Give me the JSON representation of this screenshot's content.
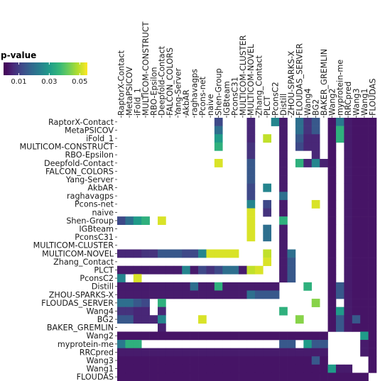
{
  "chart_data": {
    "type": "heatmap",
    "title": "",
    "legend": {
      "title": "p-value",
      "placement": "top-left",
      "range": [
        0.0,
        0.055
      ],
      "ticks": [
        0.01,
        0.03,
        0.05
      ],
      "tick_labels": [
        "0.01",
        "0.03",
        "0.05"
      ],
      "colormap": "viridis"
    },
    "x_labels": [
      "RaptorX-Contact",
      "MetaPSICOV",
      "iFold_1",
      "MULTICOM-CONSTRUCT",
      "RBO-Epsilon",
      "Deepfold-Contact",
      "FALCON_COLORS",
      "Yang-Server",
      "AkbAR",
      "raghavagps",
      "Pcons-net",
      "naive",
      "Shen-Group",
      "IGBteam",
      "PconsC31",
      "MULTICOM-CLUSTER",
      "MULTICOM-NOVEL",
      "Zhang_Contact",
      "PLCT",
      "PconsC2",
      "Distill",
      "ZHOU-SPARKS-X",
      "FLOUDAS_SERVER",
      "Wang4",
      "BG2",
      "BAKER_GREMLIN",
      "Wang2",
      "myprotein-me",
      "RRCpred",
      "Wang3",
      "Wang1",
      "FLOUDAS"
    ],
    "y_labels": [
      "RaptorX-Contact",
      "MetaPSICOV",
      "iFold_1",
      "MULTICOM-CONSTRUCT",
      "RBO-Epsilon",
      "Deepfold-Contact",
      "FALCON_COLORS",
      "Yang-Server",
      "AkbAR",
      "raghavagps",
      "Pcons-net",
      "naive",
      "Shen-Group",
      "IGBteam",
      "PconsC31",
      "MULTICOM-CLUSTER",
      "MULTICOM-NOVEL",
      "Zhang_Contact",
      "PLCT",
      "PconsC2",
      "Distill",
      "ZHOU-SPARKS-X",
      "FLOUDAS_SERVER",
      "Wang4",
      "BG2",
      "BAKER_GREMLIN",
      "Wang2",
      "myprotein-me",
      "RRCpred",
      "Wang3",
      "Wang1",
      "FLOUDAS"
    ],
    "missing": "blank (not significant / no value)",
    "values": [
      [
        null,
        null,
        null,
        null,
        null,
        null,
        null,
        null,
        null,
        null,
        null,
        null,
        0.012,
        null,
        null,
        null,
        0.006,
        null,
        null,
        0.025,
        0.004,
        null,
        0.02,
        0.008,
        0.015,
        null,
        0.003,
        0.022,
        0.004,
        0.003,
        0.003,
        0.003
      ],
      [
        null,
        null,
        null,
        null,
        null,
        null,
        null,
        null,
        null,
        null,
        null,
        null,
        0.02,
        null,
        null,
        null,
        0.006,
        null,
        null,
        null,
        0.004,
        null,
        0.02,
        0.008,
        0.015,
        null,
        0.003,
        0.035,
        0.004,
        0.003,
        0.003,
        0.003
      ],
      [
        null,
        null,
        null,
        null,
        null,
        null,
        null,
        null,
        null,
        null,
        null,
        null,
        0.03,
        null,
        null,
        null,
        0.006,
        null,
        0.05,
        null,
        0.004,
        null,
        0.015,
        0.006,
        0.006,
        null,
        0.003,
        0.035,
        0.004,
        0.003,
        0.003,
        0.003
      ],
      [
        null,
        null,
        null,
        null,
        null,
        null,
        null,
        null,
        null,
        null,
        null,
        null,
        0.035,
        null,
        null,
        null,
        0.008,
        null,
        null,
        null,
        0.004,
        null,
        0.012,
        0.006,
        0.006,
        null,
        0.003,
        null,
        0.004,
        0.003,
        0.003,
        0.003
      ],
      [
        null,
        null,
        null,
        null,
        null,
        null,
        null,
        null,
        null,
        null,
        null,
        null,
        null,
        null,
        null,
        null,
        0.008,
        null,
        null,
        null,
        0.004,
        null,
        null,
        null,
        0.006,
        null,
        0.003,
        null,
        0.004,
        0.003,
        0.003,
        0.003
      ],
      [
        null,
        null,
        null,
        null,
        null,
        null,
        null,
        null,
        null,
        null,
        null,
        null,
        0.052,
        null,
        null,
        null,
        0.015,
        null,
        null,
        null,
        0.004,
        null,
        0.035,
        0.006,
        0.025,
        0.005,
        0.003,
        null,
        0.004,
        0.003,
        0.003,
        0.003
      ],
      [
        null,
        null,
        null,
        null,
        null,
        null,
        null,
        null,
        null,
        null,
        null,
        null,
        null,
        null,
        null,
        null,
        0.015,
        null,
        null,
        null,
        0.004,
        null,
        null,
        null,
        null,
        null,
        0.003,
        null,
        0.004,
        0.003,
        0.003,
        0.003
      ],
      [
        null,
        null,
        null,
        null,
        null,
        null,
        null,
        null,
        null,
        null,
        null,
        null,
        null,
        null,
        null,
        null,
        0.015,
        null,
        null,
        null,
        0.004,
        null,
        null,
        null,
        null,
        null,
        0.003,
        null,
        0.004,
        0.003,
        0.003,
        0.003
      ],
      [
        null,
        null,
        null,
        null,
        null,
        null,
        null,
        null,
        null,
        null,
        null,
        null,
        null,
        null,
        null,
        null,
        0.012,
        null,
        0.025,
        null,
        0.004,
        null,
        null,
        null,
        null,
        null,
        0.003,
        null,
        0.004,
        0.003,
        0.003,
        0.003
      ],
      [
        null,
        null,
        null,
        null,
        null,
        null,
        null,
        null,
        null,
        null,
        null,
        null,
        null,
        null,
        null,
        null,
        0.012,
        null,
        null,
        null,
        0.02,
        null,
        null,
        null,
        null,
        null,
        0.003,
        null,
        0.004,
        0.003,
        0.003,
        0.003
      ],
      [
        null,
        null,
        null,
        null,
        null,
        null,
        null,
        null,
        null,
        null,
        null,
        null,
        null,
        null,
        null,
        null,
        0.025,
        null,
        0.012,
        null,
        0.004,
        null,
        null,
        null,
        0.052,
        null,
        0.003,
        null,
        0.004,
        0.003,
        0.003,
        0.003
      ],
      [
        null,
        null,
        null,
        null,
        null,
        null,
        null,
        null,
        null,
        null,
        null,
        null,
        null,
        null,
        null,
        null,
        0.052,
        null,
        0.008,
        null,
        0.004,
        null,
        null,
        null,
        null,
        null,
        0.003,
        null,
        0.004,
        0.003,
        0.003,
        0.003
      ],
      [
        0.012,
        0.02,
        0.03,
        0.035,
        null,
        0.052,
        null,
        null,
        null,
        null,
        null,
        null,
        null,
        null,
        null,
        null,
        0.052,
        null,
        null,
        null,
        0.035,
        null,
        null,
        null,
        null,
        null,
        0.003,
        null,
        0.004,
        0.003,
        0.003,
        0.003
      ],
      [
        null,
        null,
        null,
        null,
        null,
        null,
        null,
        null,
        null,
        null,
        null,
        null,
        null,
        null,
        null,
        null,
        0.052,
        null,
        0.02,
        null,
        0.004,
        null,
        null,
        null,
        null,
        null,
        0.003,
        null,
        0.004,
        0.003,
        0.003,
        0.003
      ],
      [
        null,
        null,
        null,
        null,
        null,
        null,
        null,
        null,
        null,
        null,
        null,
        null,
        null,
        null,
        null,
        null,
        0.052,
        null,
        0.02,
        null,
        0.004,
        null,
        null,
        null,
        null,
        null,
        0.003,
        null,
        0.004,
        0.003,
        0.003,
        0.003
      ],
      [
        null,
        null,
        null,
        null,
        null,
        null,
        null,
        null,
        null,
        null,
        null,
        null,
        null,
        null,
        null,
        null,
        null,
        null,
        null,
        null,
        0.004,
        null,
        null,
        null,
        null,
        null,
        0.003,
        null,
        0.004,
        0.003,
        0.003,
        0.003
      ],
      [
        0.006,
        0.006,
        0.006,
        0.008,
        0.008,
        0.015,
        0.015,
        0.015,
        0.012,
        0.012,
        0.025,
        0.052,
        0.052,
        0.052,
        0.052,
        null,
        null,
        null,
        0.05,
        null,
        0.004,
        0.02,
        null,
        null,
        null,
        null,
        0.003,
        null,
        0.004,
        0.003,
        0.003,
        0.003
      ],
      [
        null,
        null,
        null,
        null,
        null,
        null,
        null,
        null,
        null,
        null,
        null,
        null,
        null,
        null,
        null,
        null,
        null,
        null,
        0.052,
        null,
        0.004,
        0.015,
        null,
        null,
        null,
        null,
        0.003,
        null,
        0.004,
        0.003,
        0.003,
        0.003
      ],
      [
        0.004,
        0.004,
        0.004,
        0.004,
        0.004,
        0.004,
        0.004,
        0.004,
        0.025,
        0.004,
        0.012,
        0.008,
        0.012,
        0.02,
        0.02,
        0.004,
        0.05,
        0.052,
        null,
        null,
        0.004,
        0.015,
        null,
        null,
        null,
        null,
        0.003,
        null,
        0.004,
        0.003,
        0.003,
        0.003
      ],
      [
        0.025,
        null,
        0.052,
        null,
        null,
        null,
        null,
        null,
        null,
        null,
        null,
        null,
        null,
        null,
        null,
        null,
        null,
        null,
        null,
        null,
        0.004,
        0.015,
        null,
        null,
        null,
        null,
        0.003,
        null,
        0.004,
        0.003,
        0.003,
        0.003
      ],
      [
        0.004,
        0.004,
        0.004,
        0.004,
        0.004,
        0.004,
        0.004,
        0.004,
        0.004,
        0.02,
        0.004,
        0.004,
        0.035,
        0.004,
        0.004,
        0.004,
        0.004,
        0.004,
        0.004,
        0.004,
        null,
        null,
        null,
        0.035,
        null,
        null,
        0.003,
        0.015,
        0.004,
        0.003,
        0.003,
        0.003
      ],
      [
        0.004,
        0.004,
        0.004,
        0.004,
        0.004,
        0.004,
        0.004,
        0.004,
        0.004,
        0.004,
        0.004,
        0.004,
        0.004,
        0.004,
        0.004,
        0.004,
        0.02,
        0.015,
        0.015,
        0.015,
        null,
        null,
        null,
        null,
        null,
        null,
        0.003,
        0.015,
        0.004,
        0.003,
        0.003,
        0.003
      ],
      [
        0.02,
        0.02,
        0.015,
        0.012,
        null,
        0.035,
        null,
        null,
        null,
        null,
        null,
        null,
        null,
        null,
        null,
        null,
        null,
        null,
        null,
        null,
        null,
        null,
        null,
        null,
        0.045,
        null,
        0.003,
        null,
        0.004,
        0.003,
        0.003,
        0.003
      ],
      [
        0.008,
        0.008,
        0.006,
        0.006,
        null,
        0.006,
        null,
        null,
        null,
        null,
        null,
        null,
        null,
        null,
        null,
        null,
        null,
        null,
        null,
        null,
        0.035,
        null,
        null,
        null,
        null,
        null,
        0.003,
        0.03,
        0.004,
        0.003,
        0.003,
        0.003
      ],
      [
        0.015,
        0.015,
        0.006,
        0.006,
        0.006,
        0.025,
        null,
        null,
        null,
        null,
        0.052,
        null,
        null,
        null,
        null,
        null,
        null,
        null,
        null,
        null,
        null,
        null,
        0.045,
        null,
        null,
        null,
        0.003,
        0.015,
        0.004,
        0.015,
        0.003,
        0.003
      ],
      [
        null,
        null,
        null,
        null,
        null,
        0.005,
        null,
        null,
        null,
        null,
        null,
        null,
        null,
        null,
        null,
        null,
        null,
        null,
        null,
        null,
        null,
        null,
        null,
        null,
        null,
        null,
        0.003,
        0.015,
        0.004,
        0.003,
        0.003,
        0.003
      ],
      [
        0.003,
        0.003,
        0.003,
        0.003,
        0.003,
        0.003,
        0.003,
        0.003,
        0.003,
        0.003,
        0.003,
        0.003,
        0.003,
        0.003,
        0.003,
        0.003,
        0.003,
        0.003,
        0.003,
        0.003,
        0.003,
        0.003,
        0.003,
        0.003,
        0.003,
        0.003,
        null,
        null,
        null,
        null,
        0.03,
        0.003
      ],
      [
        0.022,
        0.035,
        0.035,
        null,
        null,
        null,
        null,
        null,
        null,
        null,
        null,
        null,
        null,
        null,
        null,
        null,
        null,
        null,
        null,
        null,
        0.015,
        0.015,
        null,
        0.03,
        0.015,
        0.015,
        null,
        null,
        null,
        null,
        0.004,
        0.003
      ],
      [
        0.004,
        0.004,
        0.004,
        0.004,
        0.004,
        0.004,
        0.004,
        0.004,
        0.004,
        0.004,
        0.004,
        0.004,
        0.004,
        0.004,
        0.004,
        0.004,
        0.004,
        0.004,
        0.004,
        0.004,
        0.004,
        0.004,
        0.004,
        0.004,
        0.004,
        0.004,
        null,
        null,
        null,
        null,
        0.004,
        0.003
      ],
      [
        0.003,
        0.003,
        0.003,
        0.003,
        0.003,
        0.003,
        0.003,
        0.003,
        0.003,
        0.003,
        0.003,
        0.003,
        0.003,
        0.003,
        0.003,
        0.003,
        0.003,
        0.003,
        0.003,
        0.003,
        0.003,
        0.003,
        0.003,
        0.003,
        0.015,
        0.003,
        null,
        null,
        null,
        null,
        null,
        0.003
      ],
      [
        0.003,
        0.003,
        0.003,
        0.003,
        0.003,
        0.003,
        0.003,
        0.003,
        0.003,
        0.003,
        0.003,
        0.003,
        0.003,
        0.003,
        0.003,
        0.003,
        0.003,
        0.003,
        0.003,
        0.003,
        0.003,
        0.003,
        0.003,
        0.003,
        0.003,
        0.003,
        0.03,
        0.004,
        0.004,
        null,
        null,
        0.003
      ],
      [
        0.003,
        0.003,
        0.003,
        0.003,
        0.003,
        0.003,
        0.003,
        0.003,
        0.003,
        0.003,
        0.003,
        0.003,
        0.003,
        0.003,
        0.003,
        0.003,
        0.003,
        0.003,
        0.003,
        0.003,
        0.003,
        0.003,
        0.003,
        0.003,
        0.003,
        0.003,
        0.003,
        0.003,
        0.003,
        0.003,
        0.003,
        null
      ]
    ]
  }
}
